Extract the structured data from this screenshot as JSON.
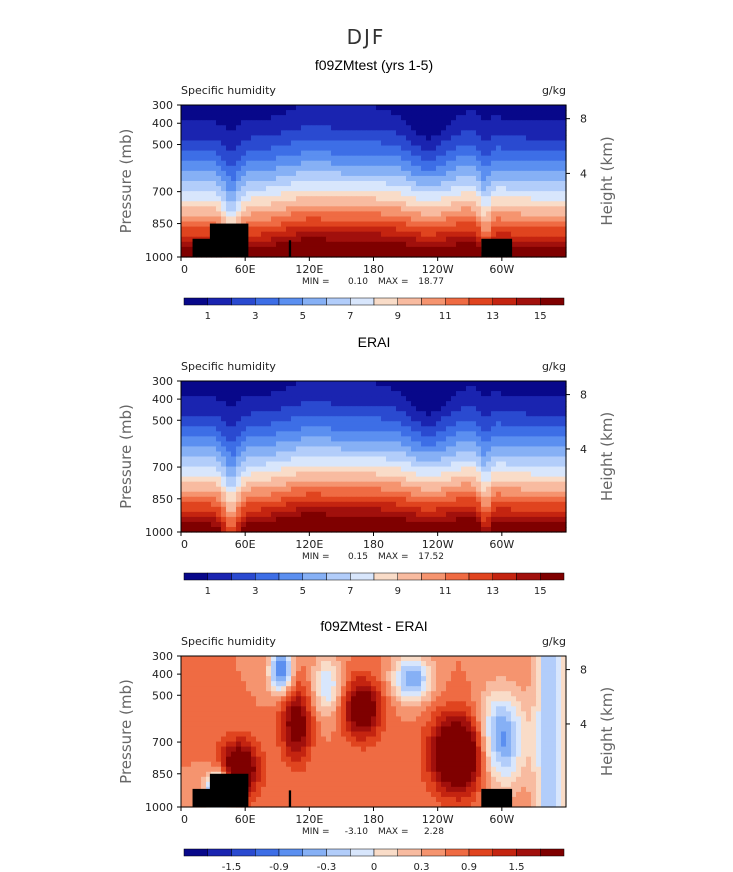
{
  "figure": {
    "title": "DJF"
  },
  "chart_data": [
    {
      "type": "heatmap",
      "title": "f09ZMtest (yrs 1-5)",
      "left_label": "Specific humidity",
      "right_label": "g/kg",
      "ylabel": "Pressure (mb)",
      "y2label": "Height (km)",
      "xticks": [
        "0",
        "60E",
        "120E",
        "180",
        "120W",
        "60W"
      ],
      "yticks": [
        "300",
        "400",
        "500",
        "700",
        "850",
        "1000"
      ],
      "y2ticks": [
        "8",
        "4"
      ],
      "stats": {
        "min_label": "MIN =",
        "min": "0.10",
        "max_label": "MAX =",
        "max": "18.77"
      },
      "colorbar_labels": [
        "1",
        "3",
        "5",
        "7",
        "9",
        "11",
        "13",
        "15"
      ],
      "topography": true,
      "field": "mean"
    },
    {
      "type": "heatmap",
      "title": "ERAI",
      "left_label": "Specific humidity",
      "right_label": "g/kg",
      "ylabel": "Pressure (mb)",
      "y2label": "Height (km)",
      "xticks": [
        "0",
        "60E",
        "120E",
        "180",
        "120W",
        "60W"
      ],
      "yticks": [
        "300",
        "400",
        "500",
        "700",
        "850",
        "1000"
      ],
      "y2ticks": [
        "8",
        "4"
      ],
      "stats": {
        "min_label": "MIN =",
        "min": "0.15",
        "max_label": "MAX =",
        "max": "17.52"
      },
      "colorbar_labels": [
        "1",
        "3",
        "5",
        "7",
        "9",
        "11",
        "13",
        "15"
      ],
      "topography": false,
      "field": "mean"
    },
    {
      "type": "heatmap",
      "title": "f09ZMtest - ERAI",
      "left_label": "Specific humidity",
      "right_label": "g/kg",
      "ylabel": "Pressure (mb)",
      "y2label": "Height (km)",
      "xticks": [
        "0",
        "60E",
        "120E",
        "180",
        "120W",
        "60W"
      ],
      "yticks": [
        "300",
        "400",
        "500",
        "700",
        "850",
        "1000"
      ],
      "y2ticks": [
        "8",
        "4"
      ],
      "stats": {
        "min_label": "MIN =",
        "min": "-3.10",
        "max_label": "MAX =",
        "max": "2.28"
      },
      "colorbar_labels": [
        "-1.5",
        "-0.9",
        "-0.3",
        "0",
        "0.3",
        "0.9",
        "1.5"
      ],
      "topography": true,
      "field": "diff"
    }
  ],
  "palette": [
    "#08088a",
    "#1a24b0",
    "#2a4ad0",
    "#3d6ee6",
    "#5b8ff0",
    "#86b0f5",
    "#b2cdfa",
    "#d8e6fc",
    "#f9dcc8",
    "#f8bba0",
    "#f5946f",
    "#ef6b43",
    "#e0441f",
    "#c42410",
    "#a1100c",
    "#7f0000"
  ]
}
